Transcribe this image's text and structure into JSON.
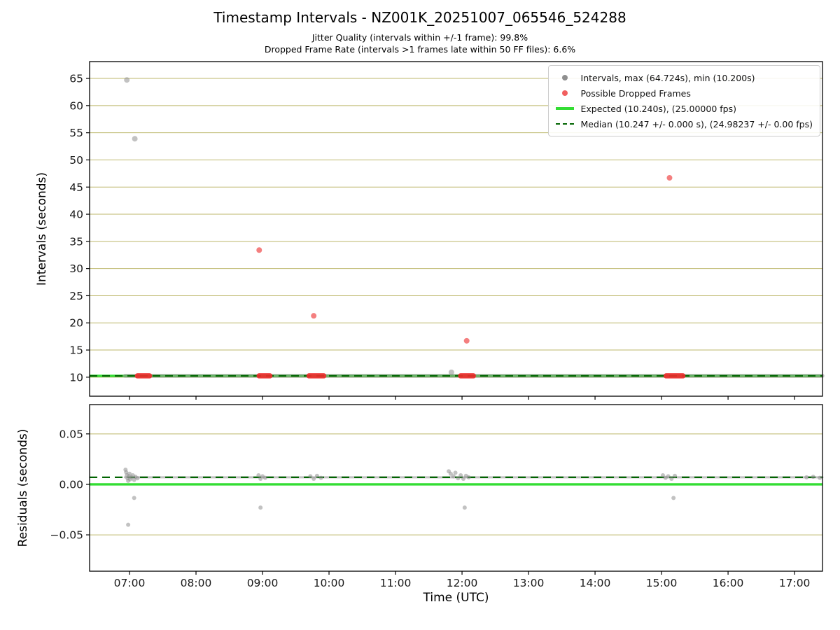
{
  "figure": {
    "title": "Timestamp Intervals - NZ001K_20251007_065546_524288",
    "subtitle_line1": "Jitter Quality (intervals within +/-1 frame): 99.8%",
    "subtitle_line2": "Dropped Frame Rate (intervals >1 frames late within 50 FF files): 6.6%",
    "xlabel": "Time (UTC)"
  },
  "colors": {
    "grid": "#bdb76b",
    "gray_point": "#8f8f8f",
    "red_point": "#f15f5f",
    "red_cluster": "#ee2b2b",
    "expected_green": "#33dd33",
    "median_green": "#006400",
    "spine": "#000000",
    "tick_label": "#1a1a1a"
  },
  "legend": {
    "entries": [
      {
        "marker": "dot",
        "color_key": "gray_point",
        "label": "Intervals, max (64.724s), min (10.200s)"
      },
      {
        "marker": "dot",
        "color_key": "red_point",
        "label": "Possible Dropped Frames"
      },
      {
        "marker": "solid-line",
        "color_key": "expected_green",
        "label": "Expected (10.240s), (25.00000 fps)"
      },
      {
        "marker": "dashed-line",
        "color_key": "median_green",
        "label": "Median (10.247 +/- 0.000 s), (24.98237 +/- 0.00 fps)"
      }
    ]
  },
  "chart_data": [
    {
      "type": "scatter",
      "name": "timestamp-intervals",
      "ylabel": "Intervals (seconds)",
      "xlim": [
        6.4,
        17.42
      ],
      "ylim": [
        6.5,
        68.1
      ],
      "xticks": [
        7,
        8,
        9,
        10,
        11,
        12,
        13,
        14,
        15,
        16,
        17
      ],
      "xtick_labels": [
        "07:00",
        "08:00",
        "09:00",
        "10:00",
        "11:00",
        "12:00",
        "13:00",
        "14:00",
        "15:00",
        "16:00",
        "17:00"
      ],
      "show_xtick_labels": false,
      "yticks": [
        10,
        15,
        20,
        25,
        30,
        35,
        40,
        45,
        50,
        55,
        60,
        65
      ],
      "grid": "horizontal",
      "expected_line": {
        "y": 10.24,
        "seconds": "10.240s",
        "fps": "25.00000"
      },
      "median_line": {
        "y": 10.247,
        "seconds": "10.247 +/- 0.000 s",
        "fps": "24.98237 +/- 0.00"
      },
      "baseline_band": {
        "y": 10.247,
        "x_start": 6.93,
        "x_end": 17.42
      },
      "dropped_frame_segments": [
        [
          7.12,
          7.3
        ],
        [
          8.95,
          9.11
        ],
        [
          9.7,
          9.92
        ],
        [
          11.98,
          12.17
        ],
        [
          15.07,
          15.32
        ]
      ],
      "gray_points": [
        [
          6.96,
          64.724
        ],
        [
          7.08,
          53.9
        ],
        [
          11.84,
          10.9
        ]
      ],
      "red_points": [
        [
          8.95,
          33.4
        ],
        [
          9.77,
          21.3
        ],
        [
          12.07,
          16.7
        ],
        [
          15.12,
          46.7
        ]
      ],
      "stats": {
        "max_interval_s": 64.724,
        "min_interval_s": 10.2,
        "jitter_quality_pct": 99.8,
        "dropped_frame_rate_pct": 6.6
      }
    },
    {
      "type": "scatter",
      "name": "residuals",
      "ylabel": "Residuals (seconds)",
      "xlim": [
        6.4,
        17.42
      ],
      "ylim": [
        -0.086,
        0.079
      ],
      "xticks": [
        7,
        8,
        9,
        10,
        11,
        12,
        13,
        14,
        15,
        16,
        17
      ],
      "xtick_labels": [
        "07:00",
        "08:00",
        "09:00",
        "10:00",
        "11:00",
        "12:00",
        "13:00",
        "14:00",
        "15:00",
        "16:00",
        "17:00"
      ],
      "show_xtick_labels": true,
      "yticks": [
        -0.05,
        0,
        0.05
      ],
      "ytick_labels": [
        "−0.05",
        "0.00",
        "0.05"
      ],
      "grid": "horizontal",
      "zero_line": {
        "y": 0.0
      },
      "median_line": {
        "y": 0.007
      },
      "baseline_band": {
        "y": 0.007,
        "x_start": 6.93,
        "x_end": 17.42
      },
      "gray_points": [
        [
          6.94,
          0.0145
        ],
        [
          6.95,
          0.012
        ],
        [
          6.96,
          0.009
        ],
        [
          6.97,
          0.006
        ],
        [
          6.98,
          0.0035
        ],
        [
          6.99,
          0.008
        ],
        [
          7.0,
          0.0105
        ],
        [
          7.01,
          0.005
        ],
        [
          7.03,
          0.007
        ],
        [
          7.05,
          0.009
        ],
        [
          7.07,
          0.0045
        ],
        [
          7.09,
          0.0075
        ],
        [
          7.12,
          0.006
        ],
        [
          6.98,
          -0.04
        ],
        [
          7.07,
          -0.0135
        ],
        [
          8.94,
          0.009
        ],
        [
          8.97,
          0.0055
        ],
        [
          9.0,
          0.008
        ],
        [
          9.04,
          0.0065
        ],
        [
          8.97,
          -0.023
        ],
        [
          9.72,
          0.008
        ],
        [
          9.77,
          0.0055
        ],
        [
          9.82,
          0.0085
        ],
        [
          9.88,
          0.0065
        ],
        [
          11.8,
          0.013
        ],
        [
          11.83,
          0.0105
        ],
        [
          11.87,
          0.008
        ],
        [
          11.9,
          0.0115
        ],
        [
          11.94,
          0.006
        ],
        [
          11.98,
          0.009
        ],
        [
          12.02,
          0.0055
        ],
        [
          12.06,
          0.0085
        ],
        [
          12.1,
          0.007
        ],
        [
          12.04,
          -0.023
        ],
        [
          15.02,
          0.009
        ],
        [
          15.06,
          0.0065
        ],
        [
          15.1,
          0.008
        ],
        [
          15.15,
          0.0055
        ],
        [
          15.2,
          0.0085
        ],
        [
          15.18,
          -0.0135
        ],
        [
          17.18,
          0.007
        ],
        [
          17.28,
          0.0075
        ],
        [
          17.38,
          0.0065
        ]
      ]
    }
  ]
}
